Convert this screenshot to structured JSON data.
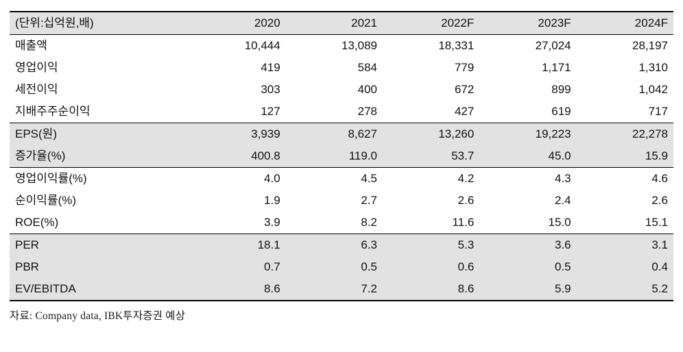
{
  "table": {
    "unit_label": "(단위:십억원,배)",
    "columns": [
      "2020",
      "2021",
      "2022F",
      "2023F",
      "2024F"
    ],
    "rows": [
      {
        "label": "매출액",
        "values": [
          "10,444",
          "13,089",
          "18,331",
          "27,024",
          "28,197"
        ],
        "shaded": false
      },
      {
        "label": "영업이익",
        "values": [
          "419",
          "584",
          "779",
          "1,171",
          "1,310"
        ],
        "shaded": false
      },
      {
        "label": "세전이익",
        "values": [
          "303",
          "400",
          "672",
          "899",
          "1,042"
        ],
        "shaded": false
      },
      {
        "label": "지배주주순이익",
        "values": [
          "127",
          "278",
          "427",
          "619",
          "717"
        ],
        "shaded": false
      },
      {
        "label": "EPS(원)",
        "values": [
          "3,939",
          "8,627",
          "13,260",
          "19,223",
          "22,278"
        ],
        "shaded": true
      },
      {
        "label": "증가율(%)",
        "values": [
          "400.8",
          "119.0",
          "53.7",
          "45.0",
          "15.9"
        ],
        "shaded": true
      },
      {
        "label": "영업이익률(%)",
        "values": [
          "4.0",
          "4.5",
          "4.2",
          "4.3",
          "4.6"
        ],
        "shaded": false
      },
      {
        "label": "순이익률(%)",
        "values": [
          "1.9",
          "2.7",
          "2.6",
          "2.4",
          "2.6"
        ],
        "shaded": false
      },
      {
        "label": "ROE(%)",
        "values": [
          "3.9",
          "8.2",
          "11.6",
          "15.0",
          "15.1"
        ],
        "shaded": false
      },
      {
        "label": "PER",
        "values": [
          "18.1",
          "6.3",
          "5.3",
          "3.6",
          "3.1"
        ],
        "shaded": true
      },
      {
        "label": "PBR",
        "values": [
          "0.7",
          "0.5",
          "0.6",
          "0.5",
          "0.4"
        ],
        "shaded": true
      },
      {
        "label": "EV/EBITDA",
        "values": [
          "8.6",
          "7.2",
          "8.6",
          "5.9",
          "5.2"
        ],
        "shaded": true
      }
    ],
    "source": "자료: Company data, IBK투자증권 예상"
  },
  "colors": {
    "shaded_row": "#e2e2e2",
    "header_bg": "#e2e2e2",
    "border": "#000000",
    "text": "#111111"
  }
}
